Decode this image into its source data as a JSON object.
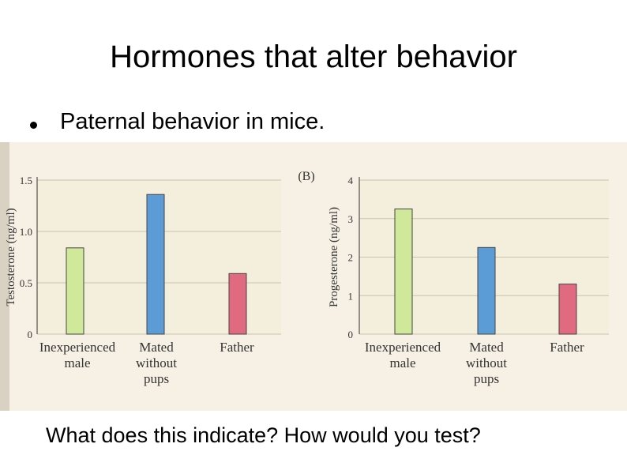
{
  "slide": {
    "title": "Hormones that alter behavior",
    "bullet": "Paternal behavior in mice.",
    "question": "What does this indicate? How would you test?"
  },
  "chart_data": [
    {
      "type": "bar",
      "panel_label": "",
      "ylabel": "Testosterone (ng/ml)",
      "categories": [
        "Inexperienced male",
        "Mated without pups",
        "Father"
      ],
      "category_lines": [
        [
          "Inexperienced",
          "male"
        ],
        [
          "Mated",
          "without",
          "pups"
        ],
        [
          "Father"
        ]
      ],
      "values": [
        0.84,
        1.36,
        0.59
      ],
      "yticks": [
        "0",
        "0.5",
        "1.0",
        "1.5"
      ],
      "ylim": [
        0,
        1.5
      ],
      "bar_colors": [
        "#cfe89a",
        "#5b9cd6",
        "#e06a80"
      ],
      "grid": true
    },
    {
      "type": "bar",
      "panel_label": "(B)",
      "ylabel": "Progesterone (ng/ml)",
      "categories": [
        "Inexperienced male",
        "Mated without pups",
        "Father"
      ],
      "category_lines": [
        [
          "Inexperienced",
          "male"
        ],
        [
          "Mated",
          "without",
          "pups"
        ],
        [
          "Father"
        ]
      ],
      "values": [
        3.25,
        2.25,
        1.3
      ],
      "yticks": [
        "0",
        "1",
        "2",
        "3",
        "4"
      ],
      "ylim": [
        0,
        4
      ],
      "bar_colors": [
        "#cfe89a",
        "#5b9cd6",
        "#e06a80"
      ],
      "grid": true
    }
  ],
  "colors": {
    "plot_background": "#f4eedc",
    "gridline": "#c9c2ad",
    "axis_text": "#333333",
    "bar_outline": "#444444"
  }
}
